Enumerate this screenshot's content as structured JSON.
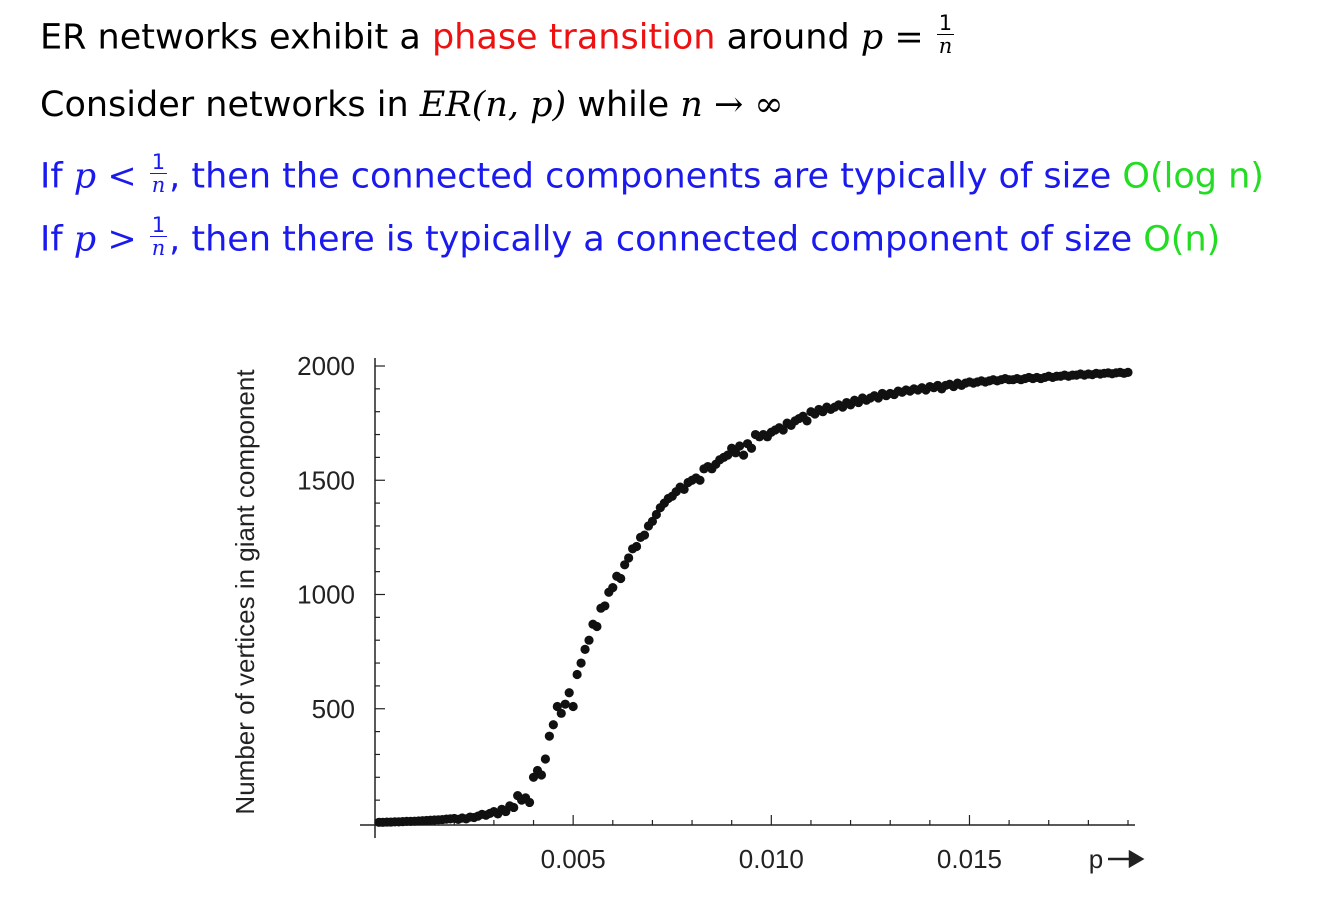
{
  "slide": {
    "line1": {
      "part1": "ER networks exhibit a ",
      "highlight": "phase transition",
      "part2": " around ",
      "math_var": "p",
      "math_eq": " = ",
      "frac_num": "1",
      "frac_den": "n"
    },
    "line2": {
      "part1": "Consider networks in ",
      "math_er": "ER",
      "math_args": "(n, p)",
      "part2": " while ",
      "math_n": "n",
      "math_limit": " → ∞"
    },
    "line3": {
      "prefix": "If ",
      "math_var": "p",
      "math_op": " < ",
      "frac_num": "1",
      "frac_den": "n",
      "text": ", then the connected components are typically of size ",
      "bigo": "O(log n)"
    },
    "line4": {
      "prefix": "If ",
      "math_var": "p",
      "math_op": " > ",
      "frac_num": "1",
      "frac_den": "n",
      "text": ", then there is typically a connected component of size ",
      "bigo": "O(n)"
    }
  },
  "colors": {
    "red": "#ee1111",
    "blue": "#1a1aee",
    "green": "#22dd22",
    "points": "#111111"
  },
  "chart_data": {
    "type": "scatter",
    "title": "",
    "xlabel": "p",
    "ylabel": "Number of vertices in giant component",
    "xlim": [
      0,
      0.019
    ],
    "ylim": [
      0,
      2000
    ],
    "xticks": [
      0.005,
      0.01,
      0.015
    ],
    "xtick_labels": [
      "0.005",
      "0.010",
      "0.015"
    ],
    "yticks": [
      500,
      1000,
      1500,
      2000
    ],
    "ytick_labels": [
      "500",
      "1000",
      "1500",
      "2000"
    ],
    "grid": false,
    "legend": "none",
    "series": [
      {
        "points": [
          [
            0.0001,
            3
          ],
          [
            0.0002,
            3
          ],
          [
            0.0003,
            4
          ],
          [
            0.0004,
            4
          ],
          [
            0.0005,
            5
          ],
          [
            0.0006,
            5
          ],
          [
            0.0007,
            6
          ],
          [
            0.0008,
            7
          ],
          [
            0.0009,
            7
          ],
          [
            0.001,
            8
          ],
          [
            0.0011,
            9
          ],
          [
            0.0012,
            10
          ],
          [
            0.0013,
            11
          ],
          [
            0.0014,
            12
          ],
          [
            0.0015,
            13
          ],
          [
            0.0016,
            14
          ],
          [
            0.0017,
            15
          ],
          [
            0.0018,
            17
          ],
          [
            0.0019,
            18
          ],
          [
            0.002,
            20
          ],
          [
            0.0021,
            16
          ],
          [
            0.0022,
            22
          ],
          [
            0.0023,
            18
          ],
          [
            0.0024,
            26
          ],
          [
            0.0025,
            24
          ],
          [
            0.0026,
            30
          ],
          [
            0.0027,
            38
          ],
          [
            0.0028,
            34
          ],
          [
            0.0029,
            42
          ],
          [
            0.003,
            50
          ],
          [
            0.0031,
            40
          ],
          [
            0.0032,
            60
          ],
          [
            0.0033,
            50
          ],
          [
            0.0034,
            75
          ],
          [
            0.0035,
            68
          ],
          [
            0.0036,
            120
          ],
          [
            0.0037,
            100
          ],
          [
            0.0038,
            110
          ],
          [
            0.0039,
            90
          ],
          [
            0.004,
            200
          ],
          [
            0.0041,
            230
          ],
          [
            0.0042,
            210
          ],
          [
            0.0043,
            280
          ],
          [
            0.0044,
            380
          ],
          [
            0.0045,
            430
          ],
          [
            0.0046,
            510
          ],
          [
            0.0047,
            480
          ],
          [
            0.0048,
            520
          ],
          [
            0.0049,
            570
          ],
          [
            0.005,
            510
          ],
          [
            0.0051,
            650
          ],
          [
            0.0052,
            700
          ],
          [
            0.0053,
            760
          ],
          [
            0.0054,
            800
          ],
          [
            0.0055,
            870
          ],
          [
            0.0056,
            860
          ],
          [
            0.0057,
            940
          ],
          [
            0.0058,
            950
          ],
          [
            0.0059,
            1010
          ],
          [
            0.006,
            1030
          ],
          [
            0.0061,
            1080
          ],
          [
            0.0062,
            1070
          ],
          [
            0.0063,
            1130
          ],
          [
            0.0064,
            1160
          ],
          [
            0.0065,
            1200
          ],
          [
            0.0066,
            1210
          ],
          [
            0.0067,
            1250
          ],
          [
            0.0068,
            1260
          ],
          [
            0.0069,
            1300
          ],
          [
            0.007,
            1320
          ],
          [
            0.0071,
            1350
          ],
          [
            0.0072,
            1380
          ],
          [
            0.0073,
            1400
          ],
          [
            0.0074,
            1420
          ],
          [
            0.0075,
            1430
          ],
          [
            0.0076,
            1450
          ],
          [
            0.0077,
            1470
          ],
          [
            0.0078,
            1460
          ],
          [
            0.0079,
            1490
          ],
          [
            0.008,
            1500
          ],
          [
            0.0081,
            1510
          ],
          [
            0.0082,
            1500
          ],
          [
            0.0083,
            1550
          ],
          [
            0.0084,
            1560
          ],
          [
            0.0085,
            1550
          ],
          [
            0.0086,
            1570
          ],
          [
            0.0087,
            1590
          ],
          [
            0.0088,
            1600
          ],
          [
            0.0089,
            1610
          ],
          [
            0.009,
            1640
          ],
          [
            0.0091,
            1620
          ],
          [
            0.0092,
            1650
          ],
          [
            0.0093,
            1610
          ],
          [
            0.0094,
            1660
          ],
          [
            0.0095,
            1640
          ],
          [
            0.0096,
            1700
          ],
          [
            0.0097,
            1690
          ],
          [
            0.0098,
            1700
          ],
          [
            0.0099,
            1690
          ],
          [
            0.01,
            1710
          ],
          [
            0.0101,
            1720
          ],
          [
            0.0102,
            1730
          ],
          [
            0.0103,
            1720
          ],
          [
            0.0104,
            1750
          ],
          [
            0.0105,
            1740
          ],
          [
            0.0106,
            1760
          ],
          [
            0.0107,
            1770
          ],
          [
            0.0108,
            1780
          ],
          [
            0.0109,
            1760
          ],
          [
            0.011,
            1800
          ],
          [
            0.0111,
            1790
          ],
          [
            0.0112,
            1810
          ],
          [
            0.0113,
            1800
          ],
          [
            0.0114,
            1820
          ],
          [
            0.0115,
            1810
          ],
          [
            0.0116,
            1820
          ],
          [
            0.0117,
            1830
          ],
          [
            0.0118,
            1820
          ],
          [
            0.0119,
            1840
          ],
          [
            0.012,
            1830
          ],
          [
            0.0121,
            1850
          ],
          [
            0.0122,
            1840
          ],
          [
            0.0123,
            1860
          ],
          [
            0.0124,
            1850
          ],
          [
            0.0125,
            1860
          ],
          [
            0.0126,
            1870
          ],
          [
            0.0127,
            1860
          ],
          [
            0.0128,
            1880
          ],
          [
            0.0129,
            1870
          ],
          [
            0.013,
            1880
          ],
          [
            0.0131,
            1875
          ],
          [
            0.0132,
            1890
          ],
          [
            0.0133,
            1885
          ],
          [
            0.0134,
            1895
          ],
          [
            0.0135,
            1890
          ],
          [
            0.0136,
            1900
          ],
          [
            0.0137,
            1895
          ],
          [
            0.0138,
            1905
          ],
          [
            0.0139,
            1895
          ],
          [
            0.014,
            1910
          ],
          [
            0.0141,
            1905
          ],
          [
            0.0142,
            1915
          ],
          [
            0.0143,
            1900
          ],
          [
            0.0144,
            1915
          ],
          [
            0.0145,
            1920
          ],
          [
            0.0146,
            1910
          ],
          [
            0.0147,
            1925
          ],
          [
            0.0148,
            1915
          ],
          [
            0.0149,
            1925
          ],
          [
            0.015,
            1930
          ],
          [
            0.0151,
            1925
          ],
          [
            0.0152,
            1930
          ],
          [
            0.0153,
            1935
          ],
          [
            0.0154,
            1930
          ],
          [
            0.0155,
            1935
          ],
          [
            0.0156,
            1940
          ],
          [
            0.0157,
            1935
          ],
          [
            0.0158,
            1940
          ],
          [
            0.0159,
            1945
          ],
          [
            0.016,
            1940
          ],
          [
            0.0161,
            1940
          ],
          [
            0.0162,
            1945
          ],
          [
            0.0163,
            1940
          ],
          [
            0.0164,
            1945
          ],
          [
            0.0165,
            1950
          ],
          [
            0.0166,
            1945
          ],
          [
            0.0167,
            1950
          ],
          [
            0.0168,
            1945
          ],
          [
            0.0169,
            1950
          ],
          [
            0.017,
            1955
          ],
          [
            0.0171,
            1950
          ],
          [
            0.0172,
            1955
          ],
          [
            0.0173,
            1955
          ],
          [
            0.0174,
            1960
          ],
          [
            0.0175,
            1955
          ],
          [
            0.0176,
            1960
          ],
          [
            0.0177,
            1960
          ],
          [
            0.0178,
            1965
          ],
          [
            0.0179,
            1960
          ],
          [
            0.018,
            1965
          ],
          [
            0.0181,
            1962
          ],
          [
            0.0182,
            1968
          ],
          [
            0.0183,
            1965
          ],
          [
            0.0184,
            1968
          ],
          [
            0.0185,
            1970
          ],
          [
            0.0186,
            1966
          ],
          [
            0.0187,
            1970
          ],
          [
            0.0188,
            1972
          ],
          [
            0.0189,
            1968
          ],
          [
            0.019,
            1972
          ]
        ]
      }
    ]
  }
}
